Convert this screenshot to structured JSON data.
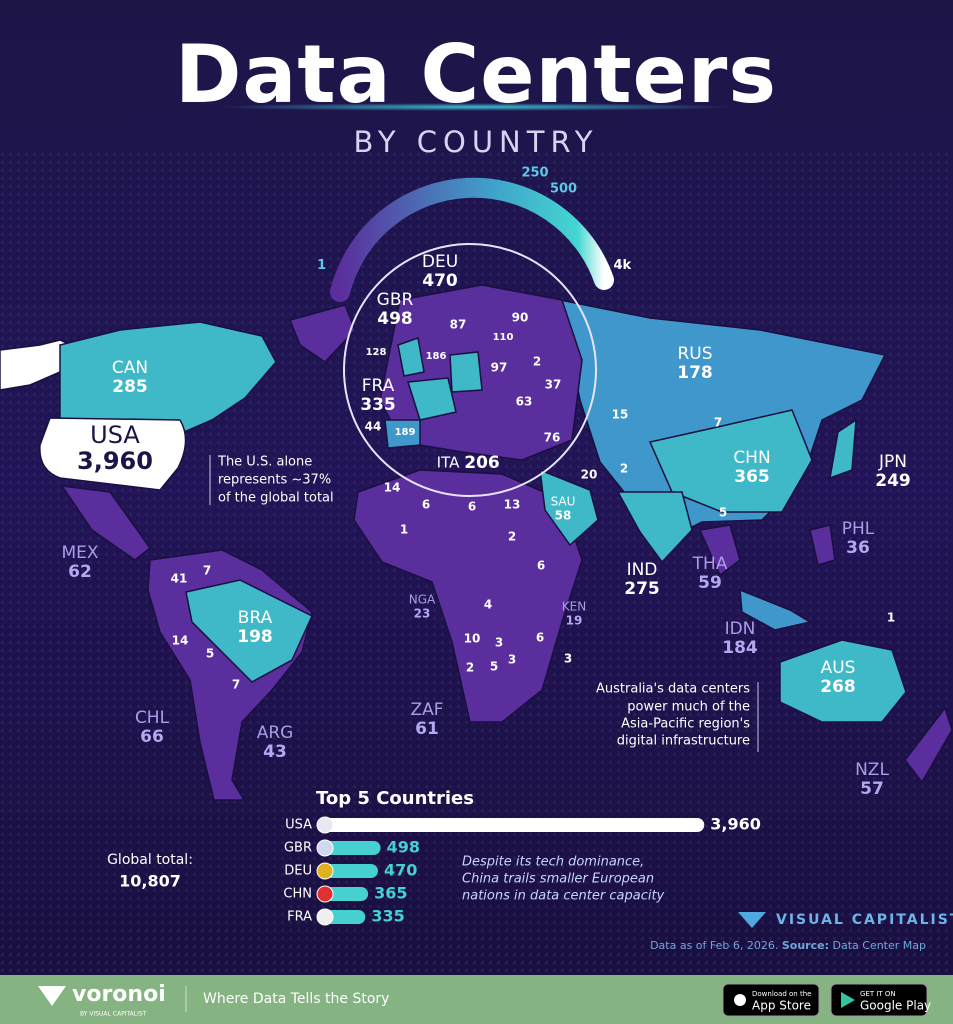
{
  "title": "Data Centers",
  "subtitle": "BY COUNTRY",
  "legend": {
    "ticks": [
      1,
      250,
      500,
      {
        "value": 4000,
        "label": "4k"
      }
    ]
  },
  "countries": [
    {
      "name": "CAN",
      "value": 285
    },
    {
      "name": "USA",
      "value": 3960,
      "value_label": "3,960"
    },
    {
      "name": "MEX",
      "value": 62
    },
    {
      "name": "BRA",
      "value": 198
    },
    {
      "name": "CHL",
      "value": 66
    },
    {
      "name": "ARG",
      "value": 43
    },
    {
      "name": "GBR",
      "value": 498
    },
    {
      "name": "DEU",
      "value": 470
    },
    {
      "name": "FRA",
      "value": 335
    },
    {
      "name": "ITA",
      "value": 206
    },
    {
      "name": "RUS",
      "value": 178
    },
    {
      "name": "CHN",
      "value": 365
    },
    {
      "name": "JPN",
      "value": 249
    },
    {
      "name": "SAU",
      "value": 58
    },
    {
      "name": "IND",
      "value": 275
    },
    {
      "name": "THA",
      "value": 59
    },
    {
      "name": "PHL",
      "value": 36
    },
    {
      "name": "IDN",
      "value": 184
    },
    {
      "name": "AUS",
      "value": 268
    },
    {
      "name": "NZL",
      "value": 57
    },
    {
      "name": "NGA",
      "value": 23
    },
    {
      "name": "KEN",
      "value": 19
    },
    {
      "name": "ZAF",
      "value": 61
    }
  ],
  "map_values": [
    87,
    90,
    110,
    128,
    186,
    97,
    2,
    37,
    63,
    44,
    189,
    76,
    15,
    7,
    20,
    2,
    5,
    14,
    6,
    6,
    13,
    1,
    2,
    6,
    4,
    3,
    6,
    10,
    2,
    5,
    3,
    3,
    41,
    7,
    14,
    5,
    7,
    1
  ],
  "notes": [
    {
      "lines": [
        "The U.S. alone",
        "represents ~37%",
        "of the global total"
      ]
    },
    {
      "lines": [
        "Australia's data centers",
        "power much of the",
        "Asia-Pacific region's",
        "digital infrastructure"
      ]
    },
    {
      "lines": [
        "Despite its tech dominance,",
        "China trails smaller European",
        "nations in data center capacity"
      ]
    }
  ],
  "top5": {
    "title": "Top 5 Countries",
    "rows": [
      {
        "name": "USA",
        "value": 3960,
        "value_label": "3,960"
      },
      {
        "name": "GBR",
        "value": 498
      },
      {
        "name": "DEU",
        "value": 470
      },
      {
        "name": "CHN",
        "value": 365
      },
      {
        "name": "FRA",
        "value": 335
      }
    ]
  },
  "global_total": {
    "label": "Global total:",
    "value": 10807,
    "value_label": "10,807"
  },
  "brand": "VISUAL CAPITALIST",
  "source": {
    "date": "Data as of Feb 6, 2026.",
    "label": "Source:",
    "name": "Data Center Map"
  },
  "footer": {
    "logo": "voronoi",
    "byline": "BY VISUAL CAPITALIST",
    "tagline": "Where Data Tells the Story",
    "app_store": {
      "small": "Download on the",
      "big": "App Store"
    },
    "google_play": {
      "small": "GET IT ON",
      "big": "Google Play"
    }
  }
}
